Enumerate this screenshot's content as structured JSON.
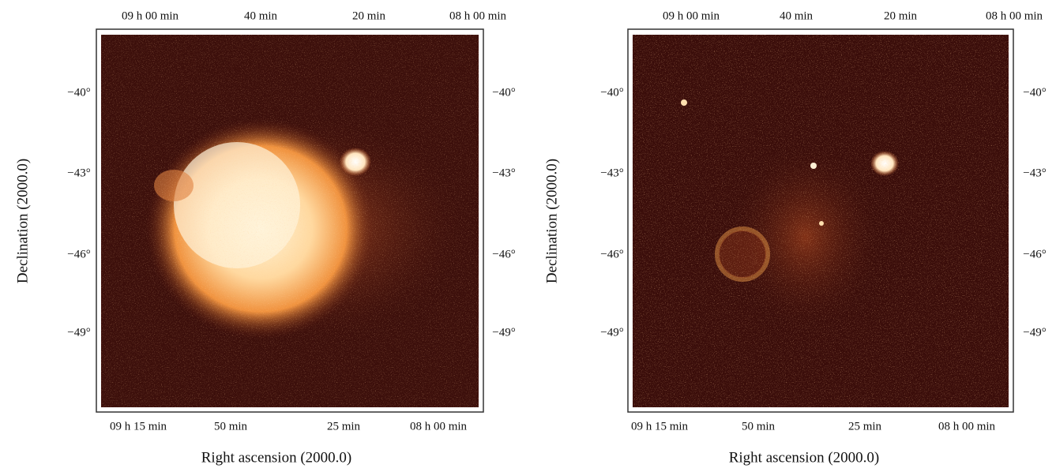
{
  "panels": [
    {
      "top_ticks": [
        "09 h 00 min",
        "40 min",
        "20 min",
        "08 h 00 min"
      ],
      "bottom_ticks": [
        "09 h 15 min",
        "50 min",
        "25 min",
        "08 h 00 min"
      ],
      "left_ticks": [
        "−40°",
        "−43°",
        "−46°",
        "−49°"
      ],
      "right_ticks": [
        "−40°",
        "−43°",
        "−46°",
        "−49°"
      ],
      "x_label": "Right ascension (2000.0)",
      "y_label": "Declination (2000.0)"
    },
    {
      "top_ticks": [
        "09 h 00 min",
        "40 min",
        "20 min",
        "08 h 00 min"
      ],
      "bottom_ticks": [
        "09 h 15 min",
        "50 min",
        "25 min",
        "08 h 00 min"
      ],
      "left_ticks": [
        "−40°",
        "−43°",
        "−46°",
        "−49°"
      ],
      "right_ticks": [
        "−40°",
        "−43°",
        "−46°",
        "−49°"
      ],
      "x_label": "Right ascension (2000.0)",
      "y_label": "Declination (2000.0)"
    }
  ]
}
